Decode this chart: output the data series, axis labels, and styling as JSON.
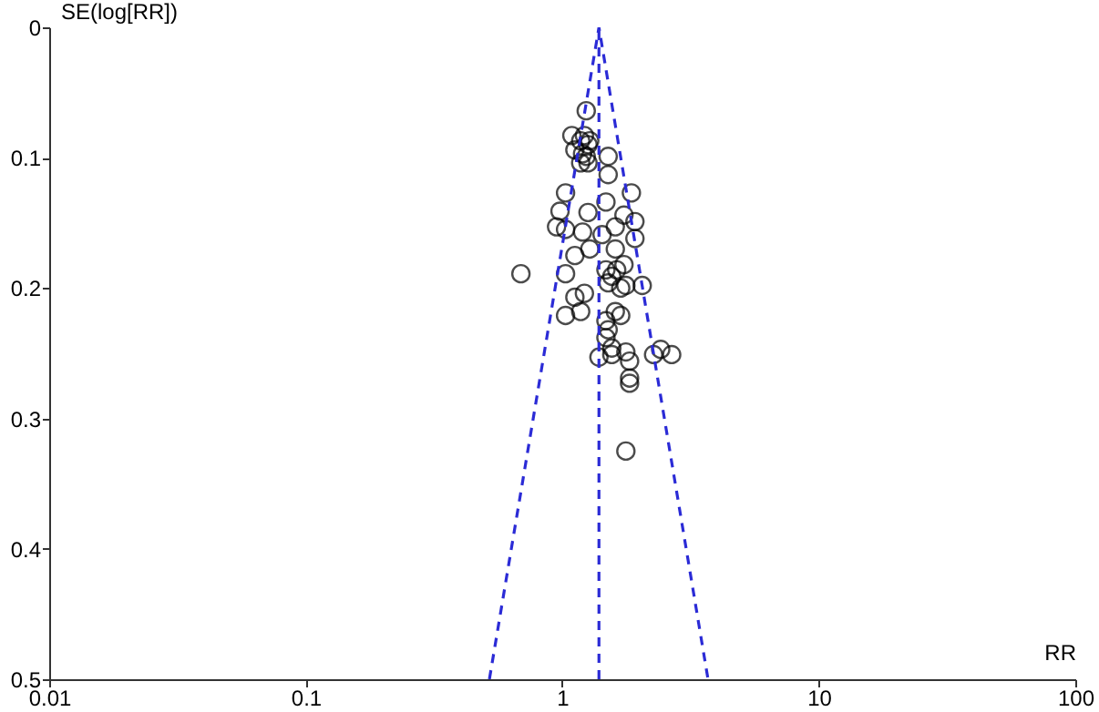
{
  "chart_data": {
    "type": "scatter",
    "xlabel": "RR",
    "ylabel": "SE(log[RR])",
    "log": "x",
    "xlim": [
      0.01,
      100
    ],
    "xticks": [
      0.01,
      0.1,
      1,
      10,
      100
    ],
    "ylim": [
      0.5,
      0
    ],
    "yticks": [
      0,
      0.1,
      0.2,
      0.3,
      0.4,
      0.5
    ],
    "grid": false,
    "marker": "circle",
    "series": [
      {
        "color": "#000000",
        "x": [
          1.24,
          1.09,
          1.18,
          1.22,
          1.26,
          1.12,
          1.2,
          1.28,
          1.24,
          1.18,
          1.26,
          1.51,
          1.51,
          1.86,
          1.03,
          0.98,
          1.26,
          1.48,
          1.74,
          1.92,
          0.95,
          1.03,
          1.2,
          1.43,
          1.61,
          1.92,
          0.69,
          1.03,
          1.28,
          1.12,
          1.61,
          1.74,
          1.63,
          1.48,
          1.56,
          2.05,
          1.22,
          1.12,
          1.77,
          1.69,
          1.51,
          1.03,
          1.18,
          1.61,
          1.69,
          1.48,
          1.51,
          1.48,
          1.56,
          1.77,
          1.39,
          1.56,
          1.83,
          2.27,
          2.42,
          2.67,
          1.83,
          1.83,
          1.77
        ],
        "values": [
          0.064,
          0.083,
          0.087,
          0.083,
          0.09,
          0.094,
          0.097,
          0.087,
          0.099,
          0.104,
          0.104,
          0.099,
          0.113,
          0.127,
          0.127,
          0.141,
          0.142,
          0.134,
          0.144,
          0.149,
          0.153,
          0.155,
          0.157,
          0.159,
          0.153,
          0.162,
          0.189,
          0.189,
          0.17,
          0.175,
          0.17,
          0.182,
          0.186,
          0.186,
          0.191,
          0.198,
          0.204,
          0.207,
          0.198,
          0.2,
          0.196,
          0.221,
          0.218,
          0.218,
          0.221,
          0.225,
          0.232,
          0.238,
          0.246,
          0.249,
          0.253,
          0.251,
          0.256,
          0.251,
          0.247,
          0.251,
          0.269,
          0.273,
          0.325
        ]
      },
      {
        "type": "line",
        "color": "#2b2bd6",
        "line_style": "dashed",
        "marker": "none",
        "x": [
          0.52,
          1.39,
          3.7
        ],
        "values": [
          0.5,
          0,
          0.5
        ]
      }
    ],
    "ref_lines": [
      {
        "axis": "x",
        "value": 1.39,
        "color": "#2b2bd6",
        "line_style": "dashed"
      }
    ]
  }
}
